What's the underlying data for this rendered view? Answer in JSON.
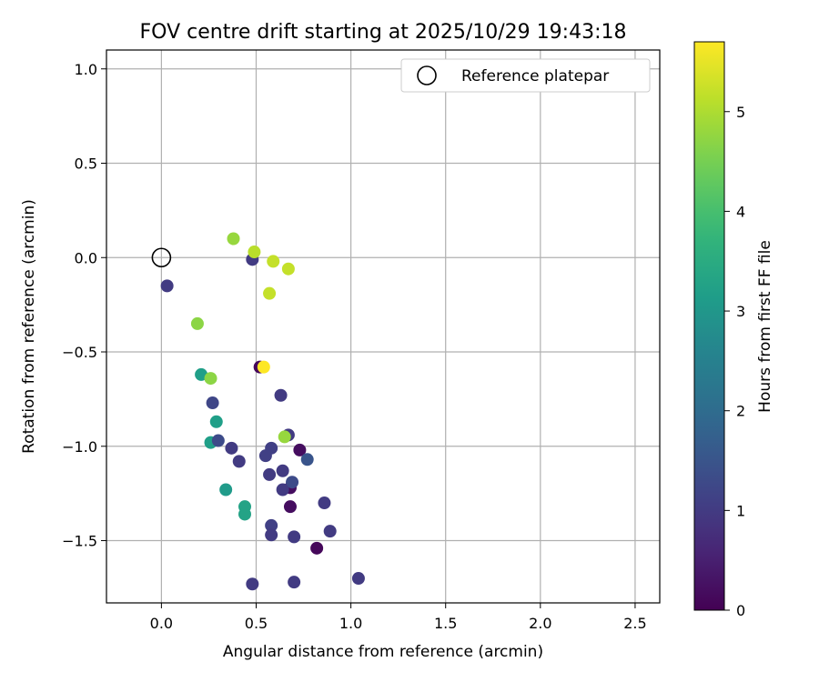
{
  "chart_data": {
    "type": "scatter",
    "title": "FOV centre drift starting at 2025/10/29 19:43:18",
    "xlabel": "Angular distance from reference (arcmin)",
    "ylabel": "Rotation from reference (arcmin)",
    "xlim": [
      -0.29,
      2.63
    ],
    "ylim": [
      -1.83,
      1.1
    ],
    "xticks": [
      0.0,
      0.5,
      1.0,
      1.5,
      2.0,
      2.5
    ],
    "xtick_labels": [
      "0.0",
      "0.5",
      "1.0",
      "1.5",
      "2.0",
      "2.5"
    ],
    "yticks": [
      1.0,
      0.5,
      0.0,
      -0.5,
      -1.0,
      -1.5
    ],
    "ytick_labels": [
      "1.0",
      "0.5",
      "0.0",
      "−0.5",
      "−1.0",
      "−1.5"
    ],
    "grid": true,
    "legend": {
      "label": "Reference platepar",
      "position": "top-right"
    },
    "reference_point": {
      "x": 0.0,
      "y": 0.0
    },
    "colorbar": {
      "label": "Hours from first FF file",
      "colormap": "viridis",
      "range": [
        0,
        5.7
      ],
      "ticks": [
        0,
        1,
        2,
        3,
        4,
        5
      ],
      "tick_labels": [
        "0",
        "1",
        "2",
        "3",
        "4",
        "5"
      ]
    },
    "points": [
      {
        "x": 0.03,
        "y": -0.15,
        "hours": 1.0
      },
      {
        "x": 0.19,
        "y": -0.35,
        "hours": 4.7
      },
      {
        "x": 0.21,
        "y": -0.62,
        "hours": 3.2
      },
      {
        "x": 0.26,
        "y": -0.64,
        "hours": 4.7
      },
      {
        "x": 0.27,
        "y": -0.77,
        "hours": 1.2
      },
      {
        "x": 0.29,
        "y": -0.87,
        "hours": 3.2
      },
      {
        "x": 0.26,
        "y": -0.98,
        "hours": 3.2
      },
      {
        "x": 0.3,
        "y": -0.97,
        "hours": 1.3
      },
      {
        "x": 0.37,
        "y": -1.01,
        "hours": 1.0
      },
      {
        "x": 0.41,
        "y": -1.08,
        "hours": 1.0
      },
      {
        "x": 0.34,
        "y": -1.23,
        "hours": 3.1
      },
      {
        "x": 0.44,
        "y": -1.32,
        "hours": 3.3
      },
      {
        "x": 0.44,
        "y": -1.36,
        "hours": 3.3
      },
      {
        "x": 0.48,
        "y": -1.73,
        "hours": 1.0
      },
      {
        "x": 0.38,
        "y": 0.1,
        "hours": 4.8
      },
      {
        "x": 0.48,
        "y": -0.01,
        "hours": 1.0
      },
      {
        "x": 0.49,
        "y": 0.03,
        "hours": 5.1
      },
      {
        "x": 0.59,
        "y": -0.02,
        "hours": 5.2
      },
      {
        "x": 0.67,
        "y": -0.06,
        "hours": 5.2
      },
      {
        "x": 0.57,
        "y": -0.19,
        "hours": 5.2
      },
      {
        "x": 0.52,
        "y": -0.58,
        "hours": 0.1
      },
      {
        "x": 0.54,
        "y": -0.58,
        "hours": 5.7
      },
      {
        "x": 0.63,
        "y": -0.73,
        "hours": 1.0
      },
      {
        "x": 0.67,
        "y": -0.94,
        "hours": 1.0
      },
      {
        "x": 0.65,
        "y": -0.95,
        "hours": 4.8
      },
      {
        "x": 0.58,
        "y": -1.01,
        "hours": 1.1
      },
      {
        "x": 0.55,
        "y": -1.05,
        "hours": 1.1
      },
      {
        "x": 0.73,
        "y": -1.02,
        "hours": 0.2
      },
      {
        "x": 0.57,
        "y": -1.15,
        "hours": 1.0
      },
      {
        "x": 0.64,
        "y": -1.13,
        "hours": 1.0
      },
      {
        "x": 0.77,
        "y": -1.07,
        "hours": 1.5
      },
      {
        "x": 0.68,
        "y": -1.22,
        "hours": 0.2
      },
      {
        "x": 0.69,
        "y": -1.19,
        "hours": 1.3
      },
      {
        "x": 0.64,
        "y": -1.23,
        "hours": 1.0
      },
      {
        "x": 0.68,
        "y": -1.32,
        "hours": 0.2
      },
      {
        "x": 0.86,
        "y": -1.3,
        "hours": 1.0
      },
      {
        "x": 0.58,
        "y": -1.42,
        "hours": 1.1
      },
      {
        "x": 0.58,
        "y": -1.47,
        "hours": 1.0
      },
      {
        "x": 0.7,
        "y": -1.48,
        "hours": 1.0
      },
      {
        "x": 0.89,
        "y": -1.45,
        "hours": 1.0
      },
      {
        "x": 0.82,
        "y": -1.54,
        "hours": 0.1
      },
      {
        "x": 0.7,
        "y": -1.72,
        "hours": 1.0
      },
      {
        "x": 1.04,
        "y": -1.7,
        "hours": 1.0
      }
    ]
  },
  "colors": {
    "grid": "#b0b0b0",
    "axes": "#000000",
    "legend_border": "#cccccc"
  }
}
